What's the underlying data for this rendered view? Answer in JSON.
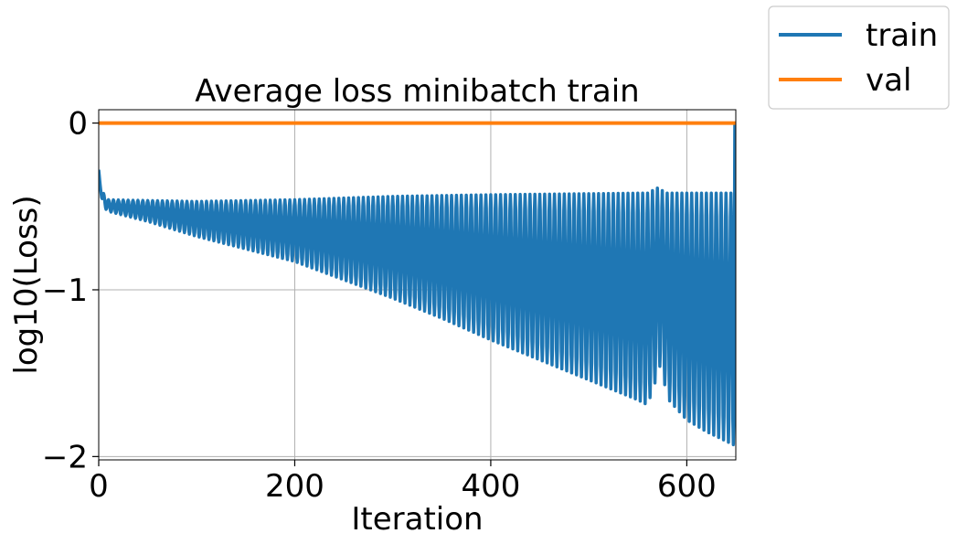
{
  "chart_data": {
    "type": "line",
    "title": "Average loss minibatch train",
    "xlabel": "Iteration",
    "ylabel": "log10(Loss)",
    "xlim": [
      0,
      650
    ],
    "ylim": [
      -2.02,
      0.08
    ],
    "xticks": [
      0,
      200,
      400,
      600
    ],
    "xtick_labels": [
      "0",
      "200",
      "400",
      "600"
    ],
    "yticks": [
      0,
      -1,
      -2
    ],
    "ytick_labels": [
      "0",
      "−1",
      "−2"
    ],
    "grid": true,
    "legend_position": "outside top-right",
    "series": [
      {
        "name": "train",
        "color": "#1f77b4",
        "pattern": "oscillating",
        "period": 5,
        "upper_envelope": [
          [
            0,
            -0.28
          ],
          [
            2,
            -0.4
          ],
          [
            10,
            -0.46
          ],
          [
            100,
            -0.47
          ],
          [
            200,
            -0.46
          ],
          [
            300,
            -0.44
          ],
          [
            400,
            -0.43
          ],
          [
            560,
            -0.42
          ],
          [
            570,
            -0.39
          ],
          [
            580,
            -0.42
          ],
          [
            648,
            -0.42
          ]
        ],
        "lower_envelope": [
          [
            0,
            -0.3
          ],
          [
            4,
            -0.5
          ],
          [
            10,
            -0.53
          ],
          [
            50,
            -0.59
          ],
          [
            100,
            -0.68
          ],
          [
            200,
            -0.83
          ],
          [
            300,
            -1.05
          ],
          [
            350,
            -1.17
          ],
          [
            400,
            -1.3
          ],
          [
            450,
            -1.42
          ],
          [
            500,
            -1.54
          ],
          [
            550,
            -1.66
          ],
          [
            560,
            -1.69
          ],
          [
            568,
            -1.55
          ],
          [
            572,
            -1.45
          ],
          [
            576,
            -1.52
          ],
          [
            580,
            -1.65
          ],
          [
            600,
            -1.78
          ],
          [
            620,
            -1.85
          ],
          [
            648,
            -1.93
          ]
        ],
        "final_point": [
          649,
          0.0
        ]
      },
      {
        "name": "val",
        "color": "#ff7f0e",
        "x": [
          0,
          650
        ],
        "values": [
          0.0,
          0.0
        ]
      }
    ]
  }
}
